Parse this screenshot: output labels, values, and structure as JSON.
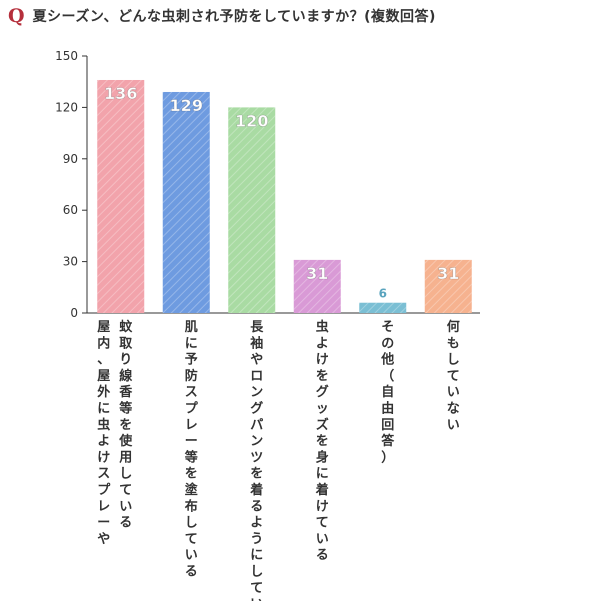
{
  "header": {
    "q_mark": "Q",
    "question": "夏シーズン、どんな虫刺され予防をしていますか？(複数回答)"
  },
  "chart_data": {
    "type": "bar",
    "title": "",
    "xlabel": "",
    "ylabel": "",
    "ylim": [
      0,
      150
    ],
    "yticks": [
      0,
      30,
      60,
      90,
      120,
      150
    ],
    "grid": false,
    "categories": [
      [
        "蚊取り線香等を使用している",
        "屋内、屋外に虫よけスプレーや"
      ],
      [
        "肌に予防スプレー等を塗布している"
      ],
      [
        "長袖やロングパンツを着るようにしている"
      ],
      [
        "虫よけをグッズを身に着けている"
      ],
      [
        "その他（自由回答）"
      ],
      [
        "何もしていない"
      ]
    ],
    "values": [
      136,
      129,
      120,
      31,
      6,
      31
    ],
    "colors": [
      "#f2a3ab",
      "#6e9be0",
      "#a9dba3",
      "#d99ad6",
      "#7bbfd4",
      "#f6b28f"
    ],
    "label_colors": [
      "#ffffff",
      "#ffffff",
      "#ffffff",
      "#ffffff",
      "#5aa4be",
      "#f08f63"
    ]
  }
}
